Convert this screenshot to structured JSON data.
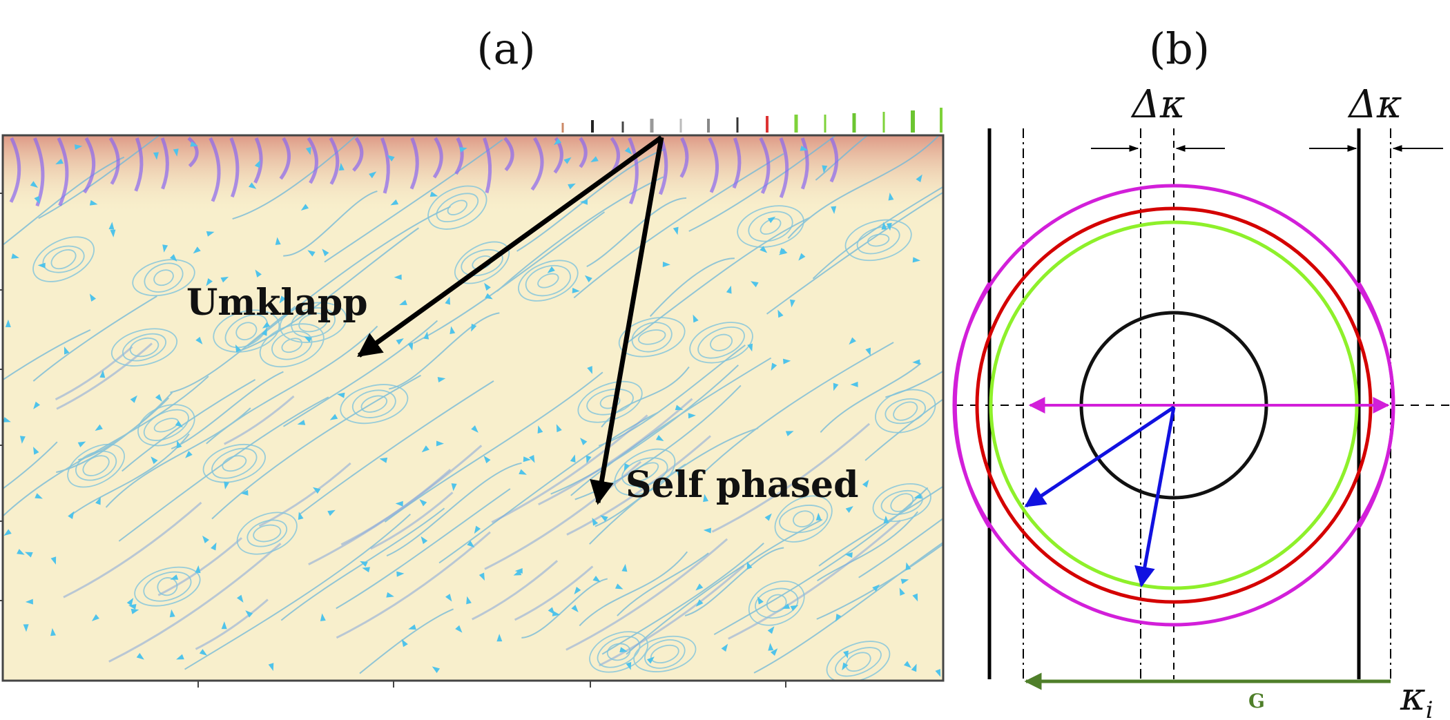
{
  "panel_a": {
    "label": "(a)",
    "annotations": {
      "umklapp": "Umklapp",
      "self_phased": "Self phased"
    }
  },
  "panel_b": {
    "label": "(b)",
    "delta_kappa_left": "Δκ",
    "delta_kappa_right": "Δκ",
    "g_label": "G",
    "kappa_base": "κ",
    "kappa_sub": "i",
    "circle_colors": {
      "inner": "#111111",
      "green": "#8ef02a",
      "red": "#d40000",
      "magenta": "#d21fd9",
      "vectors": "#1111e0",
      "G_arrow": "#4f7f2a"
    }
  }
}
